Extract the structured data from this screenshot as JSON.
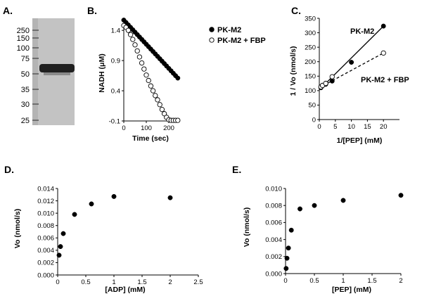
{
  "figure": {
    "panel_a": {
      "label": "A.",
      "markers": [
        "250",
        "150",
        "100",
        "75",
        "50",
        "35",
        "30",
        "25"
      ]
    }
  },
  "chart_data": [
    {
      "id": "B",
      "panel_label": "B.",
      "type": "scatter",
      "xlabel": "Time (sec)",
      "ylabel": "NADH (μM)",
      "xlim": [
        0,
        250
      ],
      "ylim": [
        -0.1,
        1.6
      ],
      "xticks": [
        0,
        100,
        200
      ],
      "yticks": [
        -0.1,
        0.4,
        0.9,
        1.4
      ],
      "ytick_labels": [
        "-0.1",
        "0.4",
        "0.9",
        "1.4"
      ],
      "legend_position": "top-right",
      "series": [
        {
          "name": "PK-M2",
          "marker": "filled",
          "x": [
            0,
            10,
            20,
            30,
            40,
            50,
            60,
            70,
            80,
            90,
            100,
            110,
            120,
            130,
            140,
            150,
            160,
            170,
            180,
            190,
            200,
            210,
            220,
            230,
            240
          ],
          "y": [
            1.57,
            1.53,
            1.49,
            1.45,
            1.41,
            1.37,
            1.33,
            1.29,
            1.25,
            1.21,
            1.17,
            1.13,
            1.09,
            1.05,
            1.01,
            0.97,
            0.93,
            0.89,
            0.85,
            0.81,
            0.77,
            0.73,
            0.69,
            0.65,
            0.61
          ]
        },
        {
          "name": "PK-M2 + FBP",
          "marker": "open",
          "x": [
            0,
            10,
            20,
            30,
            40,
            50,
            60,
            70,
            80,
            90,
            100,
            110,
            120,
            130,
            140,
            150,
            160,
            170,
            180,
            190,
            200,
            210,
            220,
            230,
            240
          ],
          "y": [
            1.48,
            1.45,
            1.4,
            1.33,
            1.25,
            1.16,
            1.06,
            0.96,
            0.86,
            0.76,
            0.66,
            0.57,
            0.48,
            0.4,
            0.32,
            0.25,
            0.17,
            0.09,
            0.02,
            -0.04,
            -0.08,
            -0.09,
            -0.09,
            -0.09,
            -0.09
          ]
        }
      ]
    },
    {
      "id": "C",
      "panel_label": "C.",
      "type": "scatter",
      "xlabel": "1/[PEP] (mM)",
      "ylabel": "1 / Vo (nmol/s)",
      "xlim": [
        0,
        25
      ],
      "ylim": [
        0,
        350
      ],
      "xticks": [
        0,
        5,
        10,
        15,
        20
      ],
      "yticks": [
        0,
        50,
        100,
        150,
        200,
        250,
        300,
        350
      ],
      "series": [
        {
          "name": "PK-M2",
          "marker": "filled",
          "fit": "solid",
          "x": [
            0.5,
            1,
            2,
            4,
            10,
            20
          ],
          "y": [
            110,
            117,
            122,
            133,
            198,
            323
          ],
          "fit_line": [
            [
              0,
              103
            ],
            [
              20,
              323
            ]
          ]
        },
        {
          "name": "PK-M2 + FBP",
          "marker": "open",
          "fit": "dashed",
          "x": [
            0.5,
            1,
            2,
            4,
            20
          ],
          "y": [
            113,
            118,
            125,
            148,
            230
          ],
          "fit_line": [
            [
              0,
              110
            ],
            [
              20,
              230
            ]
          ]
        }
      ]
    },
    {
      "id": "D",
      "panel_label": "D.",
      "type": "scatter",
      "xlabel": "[ADP] (mM)",
      "ylabel": "Vo (nmol/s)",
      "xlim": [
        0,
        2.5
      ],
      "ylim": [
        0,
        0.014
      ],
      "xticks": [
        0,
        0.5,
        1,
        1.5,
        2,
        2.5
      ],
      "xtick_labels": [
        "0",
        "0.5",
        "1",
        "1.5",
        "2",
        "2.5"
      ],
      "yticks": [
        0,
        0.002,
        0.004,
        0.006,
        0.008,
        0.01,
        0.012,
        0.014
      ],
      "ytick_labels": [
        "0.000",
        "0.002",
        "0.004",
        "0.006",
        "0.008",
        "0.010",
        "0.012",
        "0.014"
      ],
      "series": [
        {
          "marker": "filled",
          "x": [
            0.025,
            0.05,
            0.1,
            0.3,
            0.6,
            1,
            2
          ],
          "y": [
            0.0032,
            0.0046,
            0.0067,
            0.0098,
            0.0115,
            0.0127,
            0.0125
          ]
        }
      ]
    },
    {
      "id": "E",
      "panel_label": "E.",
      "type": "scatter",
      "xlabel": "[PEP] (mM)",
      "ylabel": "Vo (nmol/s)",
      "xlim": [
        0,
        2
      ],
      "ylim": [
        0,
        0.01
      ],
      "xticks": [
        0,
        0.5,
        1,
        1.5,
        2
      ],
      "xtick_labels": [
        "0",
        "0.5",
        "1",
        "1.5",
        "2"
      ],
      "yticks": [
        0,
        0.002,
        0.004,
        0.006,
        0.008,
        0.01
      ],
      "ytick_labels": [
        "0.000",
        "0.002",
        "0.004",
        "0.006",
        "0.008",
        "0.010"
      ],
      "series": [
        {
          "marker": "filled",
          "x": [
            0.01,
            0.025,
            0.05,
            0.1,
            0.25,
            0.5,
            1,
            2
          ],
          "y": [
            0.0006,
            0.0018,
            0.003,
            0.0051,
            0.0076,
            0.008,
            0.0086,
            0.0092
          ]
        }
      ]
    }
  ]
}
